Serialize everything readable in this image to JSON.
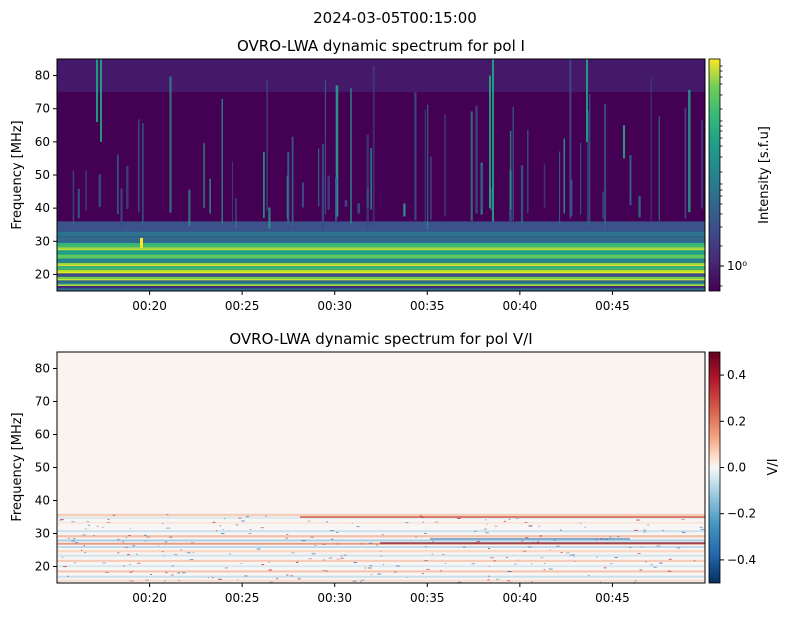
{
  "figure": {
    "suptitle": "2024-03-05T00:15:00"
  },
  "chart_data": [
    {
      "type": "heatmap",
      "title": "OVRO-LWA dynamic spectrum for pol I",
      "xlabel": "",
      "ylabel": "Frequency [MHz]",
      "x_ticks": [
        "00:20",
        "00:25",
        "00:30",
        "00:35",
        "00:40",
        "00:45"
      ],
      "x_tick_minutes": [
        20,
        25,
        30,
        35,
        40,
        45
      ],
      "x_range_minutes": [
        15.0,
        50.0
      ],
      "y_ticks": [
        20,
        30,
        40,
        50,
        60,
        70,
        80
      ],
      "ylim": [
        15,
        85
      ],
      "colormap": "viridis",
      "colorbar": {
        "label": "Intensity [s.f.u]",
        "scale": "log",
        "tick_labels": [
          "10⁰"
        ]
      },
      "colors": {
        "low": "#440154",
        "high": "#fde725"
      }
    },
    {
      "type": "heatmap",
      "title": "OVRO-LWA dynamic spectrum for pol V/I",
      "xlabel": "",
      "ylabel": "Frequency [MHz]",
      "x_ticks": [
        "00:20",
        "00:25",
        "00:30",
        "00:35",
        "00:40",
        "00:45"
      ],
      "x_tick_minutes": [
        20,
        25,
        30,
        35,
        40,
        45
      ],
      "x_range_minutes": [
        15.0,
        50.0
      ],
      "y_ticks": [
        20,
        30,
        40,
        50,
        60,
        70,
        80
      ],
      "ylim": [
        15,
        85
      ],
      "colormap": "RdBu_r",
      "colorbar": {
        "label": "V/I",
        "scale": "linear",
        "range": [
          -0.5,
          0.5
        ],
        "ticks": [
          0.4,
          0.2,
          0.0,
          -0.2,
          -0.4
        ],
        "tick_labels": [
          "0.4",
          "0.2",
          "0.0",
          "−0.2",
          "−0.4"
        ]
      },
      "colors": {
        "low": "#053061",
        "mid": "#f7f7f7",
        "high": "#67001f"
      }
    }
  ]
}
